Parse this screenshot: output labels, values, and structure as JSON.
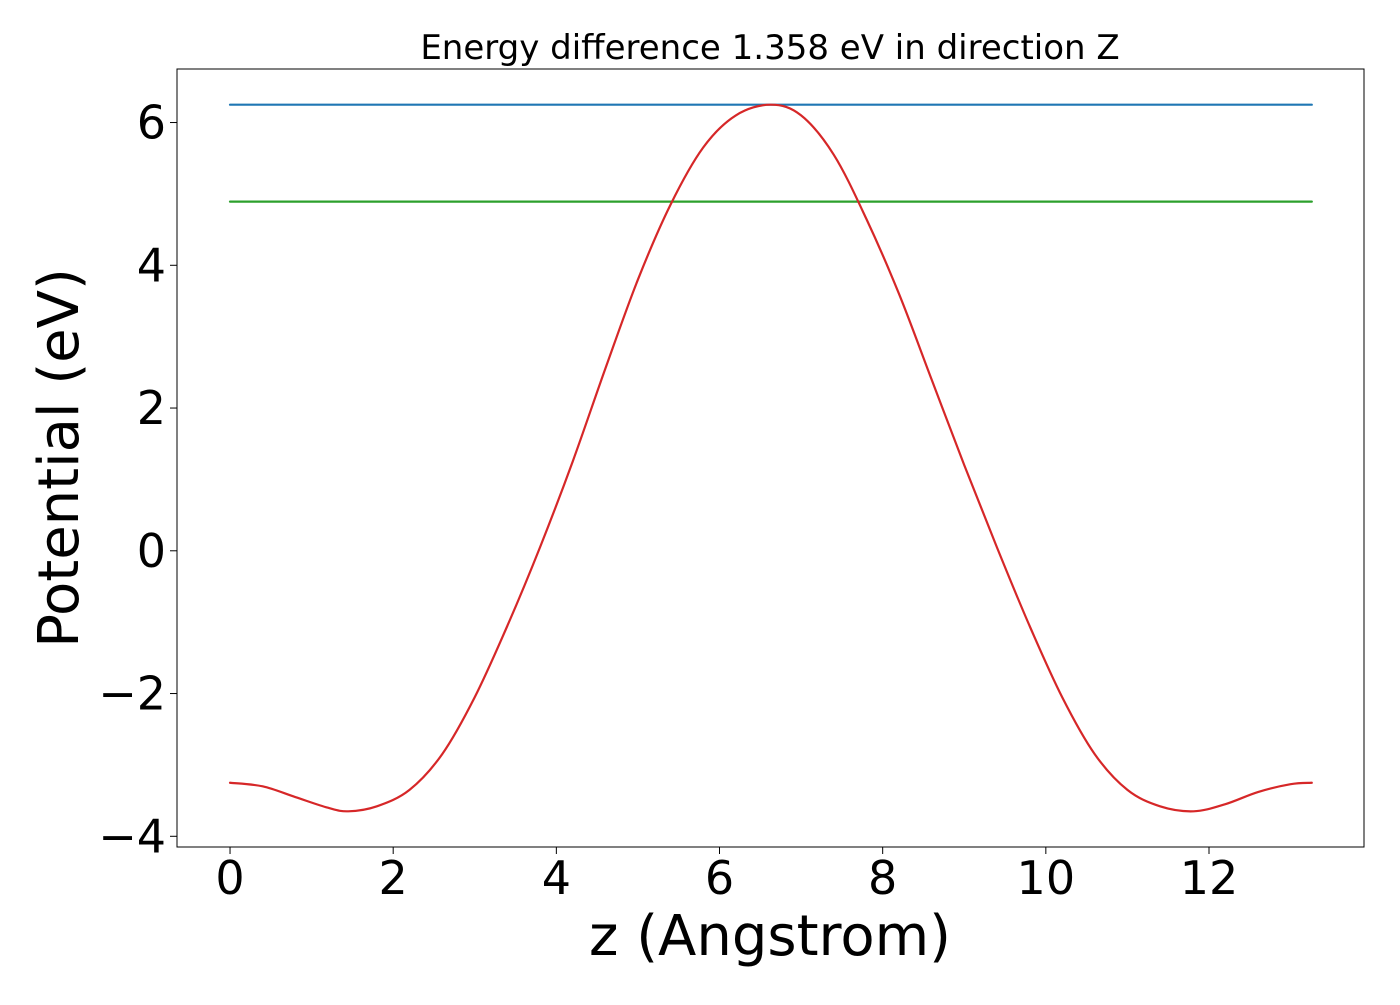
{
  "chart_data": {
    "type": "line",
    "title": "Energy difference 1.358 eV in direction Z",
    "xlabel": "z (Angstrom)",
    "ylabel": "Potential (eV)",
    "xlim": [
      -0.65,
      13.9
    ],
    "ylim": [
      -4.15,
      6.75
    ],
    "xticks": [
      0,
      2,
      4,
      6,
      8,
      10,
      12
    ],
    "yticks": [
      -4,
      -2,
      0,
      2,
      4,
      6
    ],
    "ytick_labels": [
      "−4",
      "−2",
      "0",
      "2",
      "4",
      "6"
    ],
    "grid": false,
    "legend": "none",
    "series": [
      {
        "role": "potential-curve",
        "color": "#d62728",
        "x": [
          0,
          0.4,
          0.8,
          1.2,
          1.45,
          1.8,
          2.2,
          2.6,
          3.0,
          3.4,
          3.8,
          4.2,
          4.6,
          5.0,
          5.4,
          5.8,
          6.2,
          6.63,
          7.0,
          7.4,
          7.8,
          8.2,
          8.6,
          9.0,
          9.4,
          9.8,
          10.2,
          10.6,
          11.0,
          11.4,
          11.81,
          12.2,
          12.6,
          13.0,
          13.26
        ],
        "y": [
          -3.25,
          -3.3,
          -3.45,
          -3.6,
          -3.65,
          -3.58,
          -3.35,
          -2.85,
          -2.05,
          -1.05,
          0.05,
          1.25,
          2.55,
          3.8,
          4.85,
          5.65,
          6.1,
          6.25,
          6.1,
          5.55,
          4.65,
          3.6,
          2.4,
          1.2,
          0.05,
          -1.05,
          -2.05,
          -2.85,
          -3.35,
          -3.58,
          -3.65,
          -3.55,
          -3.38,
          -3.27,
          -3.25
        ]
      },
      {
        "role": "maximum-level",
        "color": "#1f77b4",
        "x": [
          0,
          13.26
        ],
        "y": [
          6.25,
          6.25
        ]
      },
      {
        "role": "reference-level",
        "color": "#2ca02c",
        "x": [
          0,
          13.26
        ],
        "y": [
          4.892,
          4.892
        ]
      }
    ]
  }
}
